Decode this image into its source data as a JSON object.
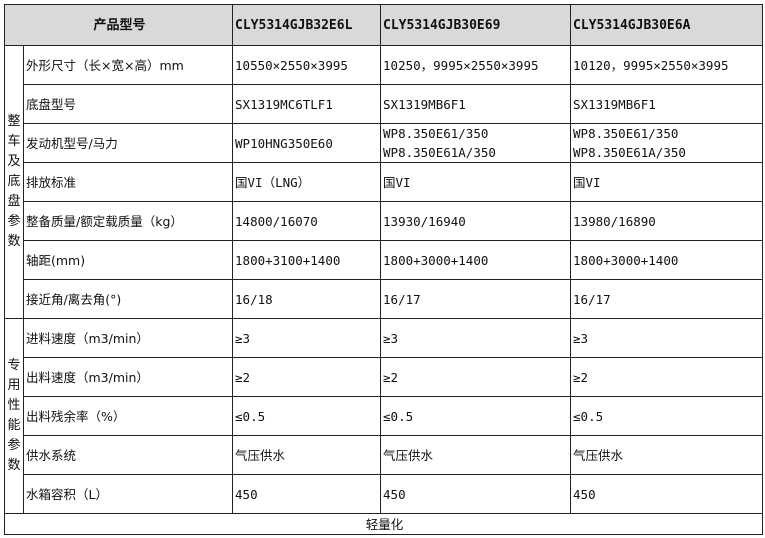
{
  "header": {
    "title": "产品型号",
    "models": [
      "CLY5314GJB32E6L",
      "CLY5314GJB30E69",
      "CLY5314GJB30E6A"
    ]
  },
  "groups": [
    {
      "label": "整车及底盘参数",
      "rows": [
        {
          "label": "外形尺寸（长×宽×高）mm",
          "values": [
            "10550×2550×3995",
            "10250，9995×2550×3995",
            "10120，9995×2550×3995"
          ]
        },
        {
          "label": "底盘型号",
          "values": [
            "SX1319MC6TLF1",
            "SX1319MB6F1",
            "SX1319MB6F1"
          ]
        },
        {
          "label": "发动机型号/马力",
          "values": [
            "WP10HNG350E60",
            "WP8.350E61/350\nWP8.350E61A/350",
            "WP8.350E61/350\nWP8.350E61A/350"
          ]
        },
        {
          "label": "排放标准",
          "values": [
            "国VI（LNG）",
            "国VI",
            "国VI"
          ]
        },
        {
          "label": "整备质量/额定载质量（kg）",
          "values": [
            "14800/16070",
            "13930/16940",
            "13980/16890"
          ]
        },
        {
          "label": "轴距(mm)",
          "values": [
            "1800+3100+1400",
            "1800+3000+1400",
            "1800+3000+1400"
          ]
        },
        {
          "label": "接近角/离去角(°)",
          "values": [
            "16/18",
            "16/17",
            "16/17"
          ]
        }
      ]
    },
    {
      "label": "专用性能参数",
      "rows": [
        {
          "label": "进料速度（m3/min）",
          "values": [
            "≥3",
            "≥3",
            "≥3"
          ]
        },
        {
          "label": "出料速度（m3/min）",
          "values": [
            "≥2",
            "≥2",
            "≥2"
          ]
        },
        {
          "label": "出料残余率（%）",
          "values": [
            "≤0.5",
            "≤0.5",
            "≤0.5"
          ]
        },
        {
          "label": "供水系统",
          "values": [
            "气压供水",
            "气压供水",
            "气压供水"
          ]
        },
        {
          "label": "水箱容积（L）",
          "values": [
            "450",
            "450",
            "450"
          ]
        }
      ]
    }
  ],
  "footer": "轻量化"
}
